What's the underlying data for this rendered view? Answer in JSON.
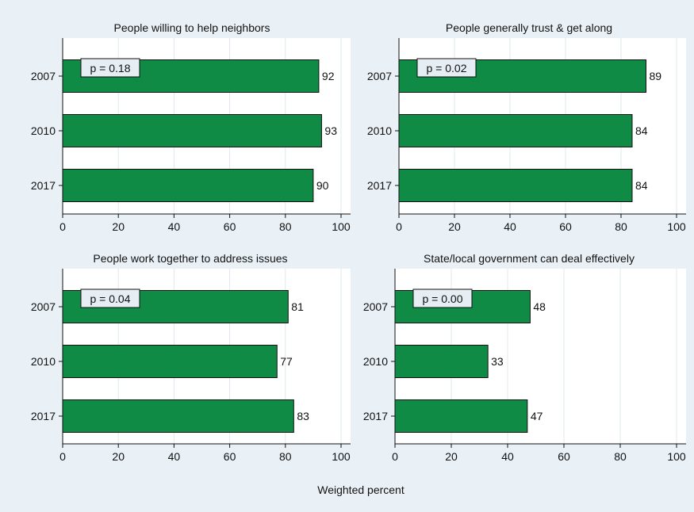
{
  "figure": {
    "xlabel": "Weighted percent",
    "colors": {
      "background": "#eaf1f6",
      "plot_background": "#ffffff",
      "bar_fill": "#0f8b45",
      "bar_stroke": "#111111",
      "grid": "#dfe8ee",
      "pbox_fill": "#e7eef3",
      "text": "#111111"
    }
  },
  "chart_data": [
    {
      "type": "bar",
      "orientation": "horizontal",
      "title": "People willing to help neighbors",
      "categories": [
        "2007",
        "2010",
        "2017"
      ],
      "values": [
        92,
        93,
        90
      ],
      "value_labels": [
        "92",
        "93",
        "90"
      ],
      "annotation": "p = 0.18",
      "xlim": [
        0,
        100
      ],
      "xticks": [
        0,
        20,
        40,
        60,
        80,
        100
      ],
      "xtick_labels": [
        "0",
        "20",
        "40",
        "60",
        "80",
        "100"
      ],
      "grid": true
    },
    {
      "type": "bar",
      "orientation": "horizontal",
      "title": "People generally trust & get along",
      "categories": [
        "2007",
        "2010",
        "2017"
      ],
      "values": [
        89,
        84,
        84
      ],
      "value_labels": [
        "89",
        "84",
        "84"
      ],
      "annotation": "p = 0.02",
      "xlim": [
        0,
        100
      ],
      "xticks": [
        0,
        20,
        40,
        60,
        80,
        100
      ],
      "xtick_labels": [
        "0",
        "20",
        "40",
        "60",
        "80",
        "100"
      ],
      "grid": true
    },
    {
      "type": "bar",
      "orientation": "horizontal",
      "title": "People work together to address issues",
      "categories": [
        "2007",
        "2010",
        "2017"
      ],
      "values": [
        81,
        77,
        83
      ],
      "value_labels": [
        "81",
        "77",
        "83"
      ],
      "annotation": "p = 0.04",
      "xlim": [
        0,
        100
      ],
      "xticks": [
        0,
        20,
        40,
        60,
        80,
        100
      ],
      "xtick_labels": [
        "0",
        "20",
        "40",
        "60",
        "80",
        "100"
      ],
      "grid": true
    },
    {
      "type": "bar",
      "orientation": "horizontal",
      "title": "State/local government can deal effectively",
      "categories": [
        "2007",
        "2010",
        "2017"
      ],
      "values": [
        48,
        33,
        47
      ],
      "value_labels": [
        "48",
        "33",
        "47"
      ],
      "annotation": "p = 0.00",
      "xlim": [
        0,
        100
      ],
      "xticks": [
        0,
        20,
        40,
        60,
        80,
        100
      ],
      "xtick_labels": [
        "0",
        "20",
        "40",
        "60",
        "80",
        "100"
      ],
      "grid": true
    }
  ]
}
